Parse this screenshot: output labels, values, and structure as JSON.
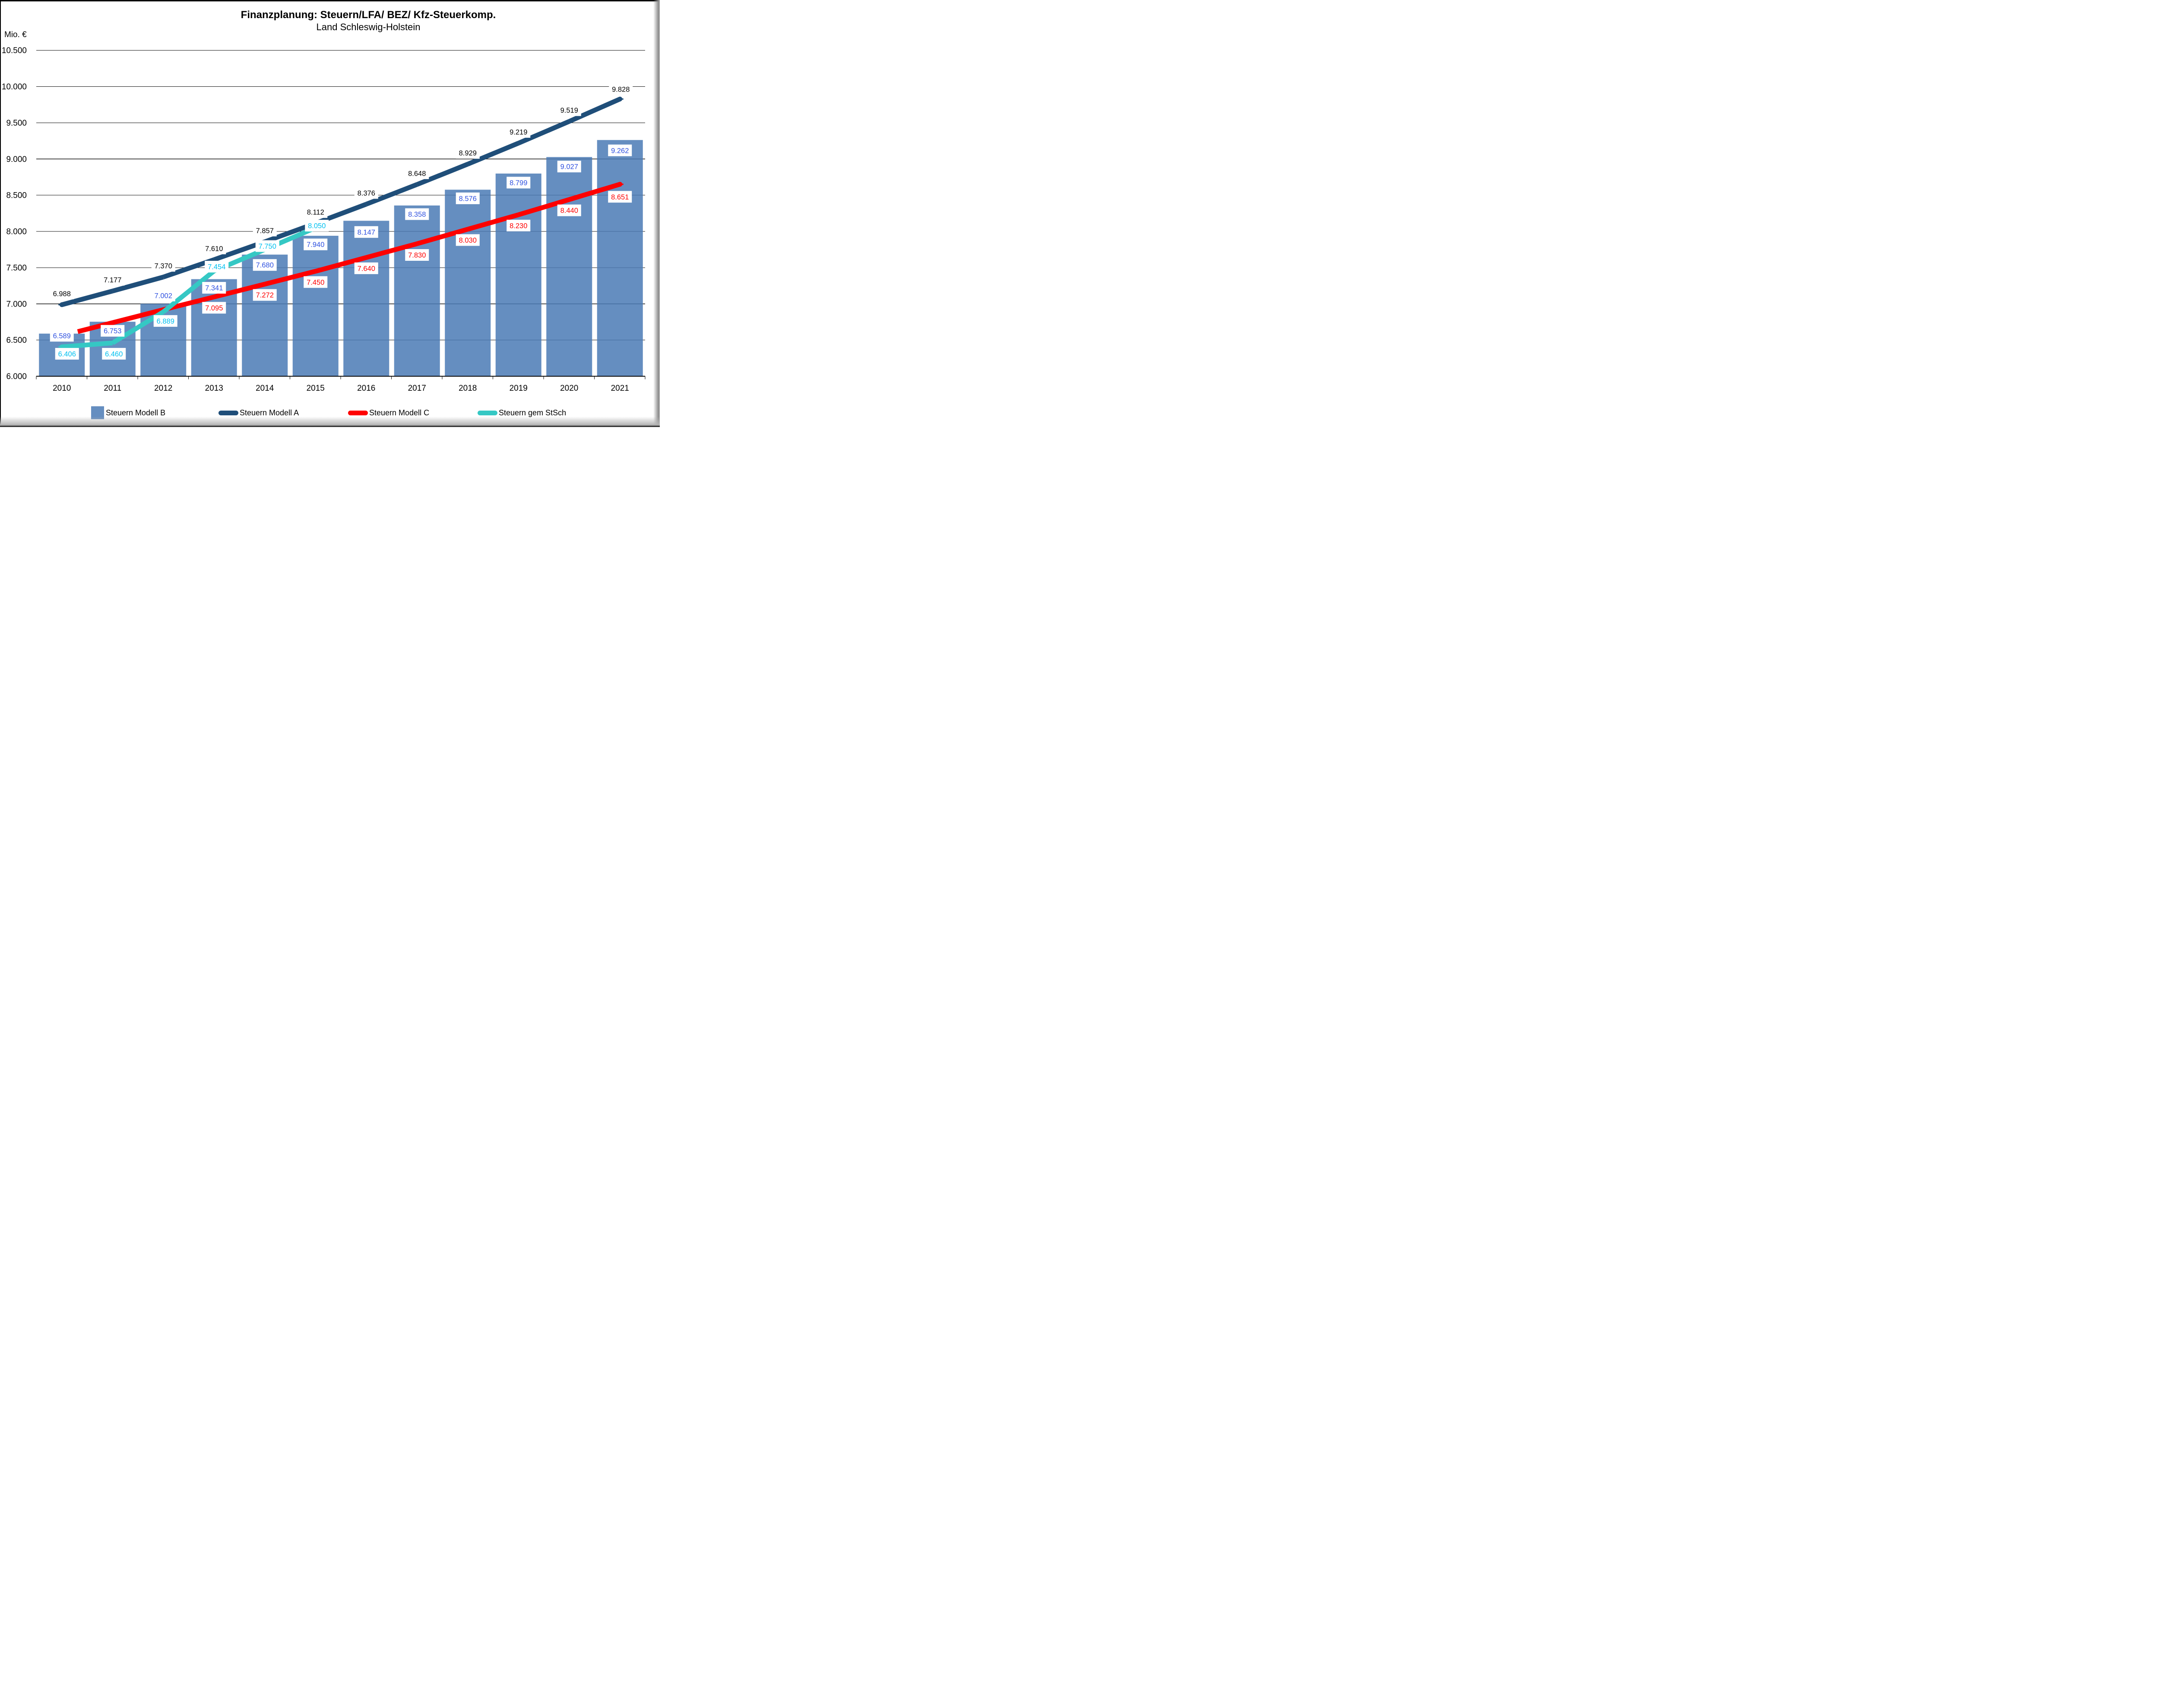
{
  "header": {
    "title": "Finanzplanung: Steuern/LFA/ BEZ/ Kfz-Steuerkomp.",
    "subtitle": "Land Schleswig-Holstein"
  },
  "axis_unit_label": "Mio. €",
  "colors": {
    "background": "#ffffff",
    "gridline": "#141414",
    "axis_line": "#000000",
    "label_box": "#ffffff",
    "bar_fill": "rgba(74,122,181,0.85)",
    "line_model_a": "#1F4E79",
    "line_model_c": "#FE0000",
    "line_stsch": "#35C8C4",
    "bar_label_text": "#3052E0",
    "stsch_label_text": "#00C0F0"
  },
  "chart_data": {
    "type": "combo-bar-line",
    "title": "Finanzplanung: Steuern/LFA/ BEZ/ Kfz-Steuerkomp.",
    "subtitle": "Land Schleswig-Holstein",
    "ylabel": "Mio. €",
    "grid": true,
    "legend_position": "bottom",
    "categories": [
      "2010",
      "2011",
      "2012",
      "2013",
      "2014",
      "2015",
      "2016",
      "2017",
      "2018",
      "2019",
      "2020",
      "2021"
    ],
    "y_axis": {
      "min": 6000,
      "max": 10500,
      "step": 500,
      "tick_labels": [
        "6.000",
        "6.500",
        "7.000",
        "7.500",
        "8.000",
        "8.500",
        "9.000",
        "9.500",
        "10.000",
        "10.500"
      ]
    },
    "series": [
      {
        "name": "Steuern Modell B",
        "type": "bar",
        "color": "rgba(74,122,181,0.85)",
        "label_color": "#3052E0",
        "values": [
          6589,
          6753,
          7002,
          7341,
          7680,
          7940,
          8147,
          8358,
          8576,
          8799,
          9027,
          9262
        ],
        "labels": [
          "6.589",
          "6.753",
          "7.002",
          "7.341",
          "7.680",
          "7.940",
          "8.147",
          "8.358",
          "8.576",
          "8.799",
          "9.027",
          "9.262"
        ],
        "label_offsets": [
          [
            0,
            5
          ],
          [
            0,
            21
          ],
          [
            0,
            -19
          ],
          [
            0,
            20
          ],
          [
            0,
            24
          ],
          [
            0,
            20
          ],
          [
            0,
            26
          ],
          [
            0,
            20
          ],
          [
            0,
            20
          ],
          [
            0,
            21
          ],
          [
            0,
            22
          ],
          [
            0,
            24
          ]
        ]
      },
      {
        "name": "Steuern Modell A",
        "type": "line",
        "color": "#1F4E79",
        "label_color": "#000000",
        "round_start": true,
        "round_end": true,
        "values": [
          6988,
          7177,
          7370,
          7610,
          7857,
          8112,
          8376,
          8648,
          8929,
          9219,
          9519,
          9828
        ],
        "labels": [
          "6.988",
          "7.177",
          "7.370",
          "7.610",
          "7.857",
          "8.112",
          "8.376",
          "8.648",
          "8.929",
          "9.219",
          "9.519",
          "9.828"
        ],
        "label_offsets": [
          [
            0,
            -26
          ],
          [
            0,
            -26
          ],
          [
            0,
            -26
          ],
          [
            0,
            -26
          ],
          [
            0,
            -26
          ],
          [
            0,
            -26
          ],
          [
            0,
            -26
          ],
          [
            0,
            -26
          ],
          [
            0,
            -26
          ],
          [
            0,
            -26
          ],
          [
            0,
            -26
          ],
          [
            2,
            -23
          ]
        ]
      },
      {
        "name": "Steuern Modell C",
        "type": "line",
        "color": "#FE0000",
        "label_color": "#FE0000",
        "round_end": true,
        "clip_start": 0.313,
        "values": [
          6560,
          6740,
          6920,
          7095,
          7272,
          7450,
          7640,
          7830,
          8030,
          8230,
          8440,
          8651
        ],
        "labels": [
          null,
          null,
          null,
          "7.095",
          "7.272",
          "7.450",
          "7.640",
          "7.830",
          "8.030",
          "8.230",
          "8.440",
          "8.651"
        ],
        "label_offsets": [
          [
            0,
            25
          ],
          [
            0,
            25
          ],
          [
            0,
            25
          ],
          [
            0,
            25
          ],
          [
            0,
            25
          ],
          [
            0,
            25
          ],
          [
            0,
            25
          ],
          [
            0,
            26
          ],
          [
            0,
            25
          ],
          [
            0,
            25
          ],
          [
            0,
            25
          ],
          [
            0,
            29
          ]
        ]
      },
      {
        "name": "Steuern gem StSch",
        "type": "line",
        "color": "#35C8C4",
        "label_color": "#00C0F0",
        "round_start": true,
        "values": [
          6406,
          6460,
          6889,
          7454,
          7750,
          8050,
          null,
          null,
          null,
          null,
          null,
          null
        ],
        "labels": [
          "6.406",
          "6.460",
          "6.889",
          "7.454",
          "7.750",
          "8.050",
          null,
          null,
          null,
          null,
          null,
          null
        ],
        "label_offsets": [
          [
            12,
            16
          ],
          [
            3,
            25
          ],
          [
            5,
            21
          ],
          [
            6,
            -10
          ],
          [
            6,
            -8
          ],
          [
            3,
            -5
          ]
        ]
      }
    ]
  },
  "legend": {
    "items": [
      {
        "label": "Steuern Modell B",
        "swatch": "bar-square-icon"
      },
      {
        "label": "Steuern Modell A",
        "swatch": "line-capsule-icon"
      },
      {
        "label": "Steuern Modell C",
        "swatch": "line-capsule-icon"
      },
      {
        "label": "Steuern gem StSch",
        "swatch": "line-capsule-icon"
      }
    ]
  }
}
